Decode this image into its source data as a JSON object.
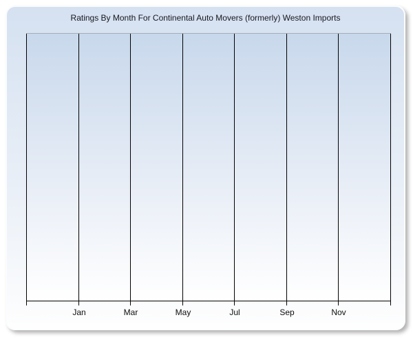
{
  "page_background": "#ffffff",
  "style": {
    "panel_fill_top": "#d5e1f1",
    "panel_fill_mid": "#e9eff7",
    "panel_fill_bottom": "#fefefe",
    "panel_border": "#fbfcfe",
    "plot_fill_top": "#c8d8ec",
    "plot_fill_mid": "#e7edf6",
    "plot_fill_bottom": "#ffffff",
    "plot_top_border": "#a5abb6",
    "gridline_color": "#000000",
    "axis_color": "#000000",
    "title_color": "#17171f",
    "tick_label_color": "#0d0d0d"
  },
  "chart_data": {
    "type": "line",
    "title": "Ratings By Month For Continental Auto Movers (formerly) Weston Imports",
    "x_tick_labels": [
      "Jan",
      "Mar",
      "May",
      "Jul",
      "Sep",
      "Nov"
    ],
    "x_axis_span_intervals": 7,
    "labeled_interval_indices": [
      1,
      2,
      3,
      4,
      5,
      6
    ],
    "x_tick_interval_months": 2,
    "series": [],
    "plot_empty": true,
    "y_axis": {
      "tick_labels": [],
      "labels_visible": false
    },
    "grid": {
      "vertical": true,
      "horizontal": false
    },
    "legend": "none"
  }
}
